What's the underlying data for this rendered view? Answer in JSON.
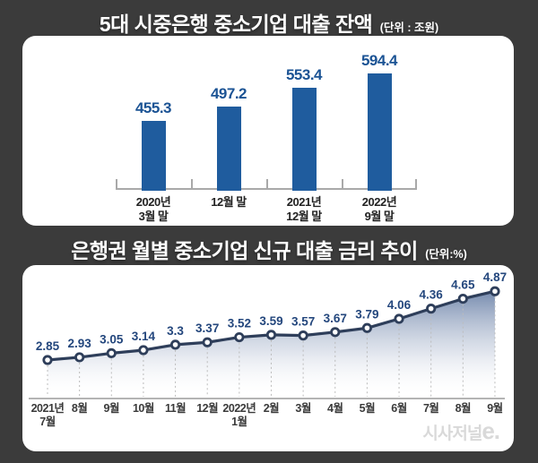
{
  "page": {
    "background_color": "#3b3b3b",
    "watermark_text": "시사저널",
    "watermark_e": "e."
  },
  "chart_data": [
    {
      "type": "bar",
      "title": "5대 시중은행 중소기업 대출 잔액",
      "unit_label": "(단위 : 조원)",
      "categories": [
        [
          "2020년",
          "3월 말"
        ],
        [
          "12월 말"
        ],
        [
          "2021년",
          "12월 말"
        ],
        [
          "2022년",
          "9월 말"
        ]
      ],
      "values": [
        455.3,
        497.2,
        553.4,
        594.4
      ],
      "value_labels": [
        "455.3",
        "497.2",
        "553.4",
        "594.4"
      ],
      "bar_color": "#1f5c9e",
      "value_label_color": "#1b5394",
      "axis_baseline_value": 250,
      "ylim": [
        250,
        610
      ],
      "grid": false,
      "legend": false
    },
    {
      "type": "area",
      "title": "은행권 월별 중소기업 신규 대출 금리 추이",
      "unit_label": "(단위:%)",
      "x": [
        [
          "2021년",
          "7월"
        ],
        [
          "8월"
        ],
        [
          "9월"
        ],
        [
          "10월"
        ],
        [
          "11월"
        ],
        [
          "12월"
        ],
        [
          "2022년",
          "1월"
        ],
        [
          "2월"
        ],
        [
          "3월"
        ],
        [
          "4월"
        ],
        [
          "5월"
        ],
        [
          "6월"
        ],
        [
          "7월"
        ],
        [
          "8월"
        ],
        [
          "9월"
        ]
      ],
      "values": [
        2.85,
        2.93,
        3.05,
        3.14,
        3.3,
        3.37,
        3.52,
        3.59,
        3.57,
        3.67,
        3.79,
        4.06,
        4.36,
        4.65,
        4.87
      ],
      "value_labels": [
        "2.85",
        "2.93",
        "3.05",
        "3.14",
        "3.3",
        "3.37",
        "3.52",
        "3.59",
        "3.57",
        "3.67",
        "3.79",
        "4.06",
        "4.36",
        "4.65",
        "4.87"
      ],
      "line_color": "#2e3e5a",
      "marker": "open-circle",
      "value_label_color": "#24477d",
      "area_gradient_top": "#6f85aa",
      "area_gradient_bottom": "#ffffff",
      "ylim": [
        2.6,
        5.0
      ],
      "grid": false,
      "legend": false
    }
  ]
}
